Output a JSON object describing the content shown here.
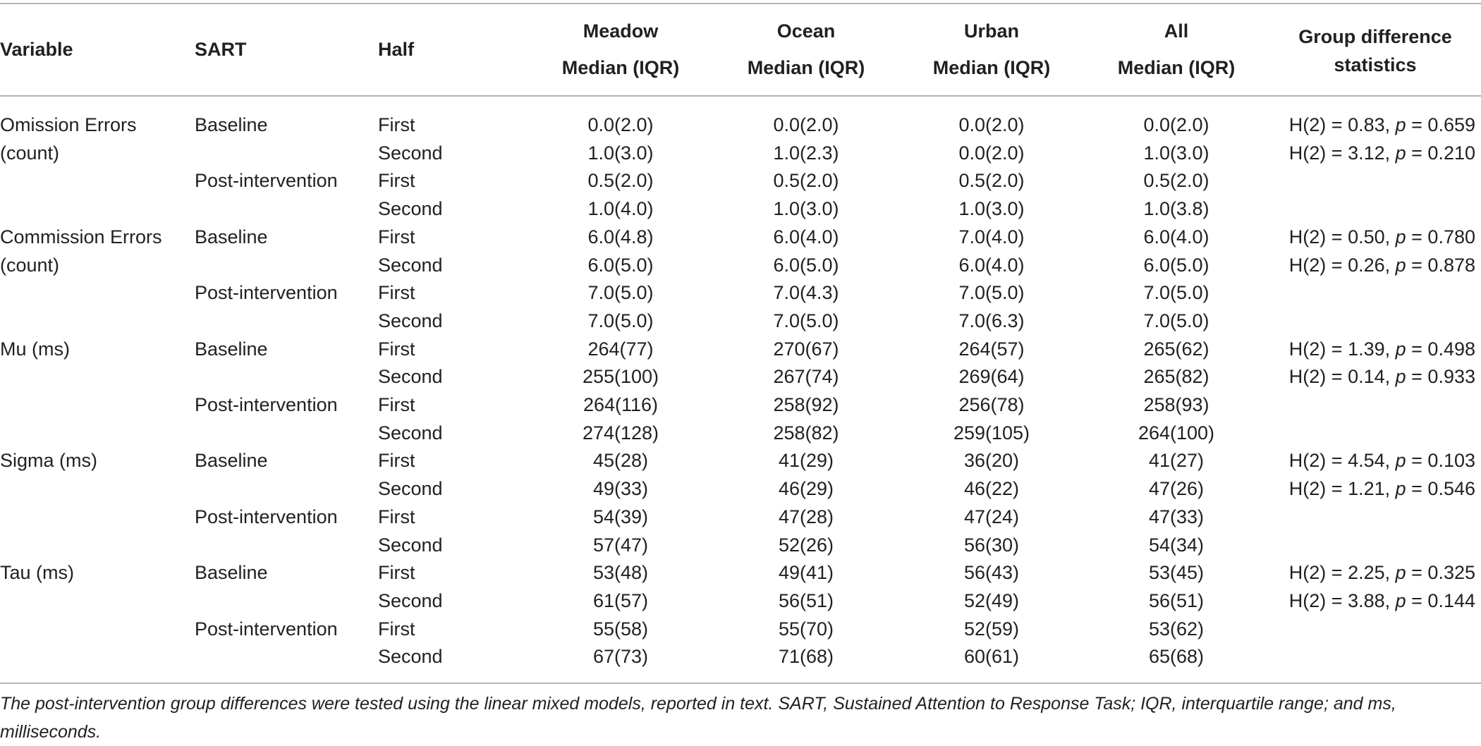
{
  "header": {
    "variable": "Variable",
    "sart": "SART",
    "half": "Half",
    "groups": [
      {
        "name": "Meadow",
        "sub": "Median (IQR)"
      },
      {
        "name": "Ocean",
        "sub": "Median (IQR)"
      },
      {
        "name": "Urban",
        "sub": "Median (IQR)"
      },
      {
        "name": "All",
        "sub": "Median (IQR)"
      }
    ],
    "stats_line1": "Group difference",
    "stats_line2": "statistics"
  },
  "rows": [
    {
      "variable": "Omission Errors",
      "sart": "Baseline",
      "half": "First",
      "meadow": "0.0(2.0)",
      "ocean": "0.0(2.0)",
      "urban": "0.0(2.0)",
      "all": "0.0(2.0)",
      "stat_h": "H(2) = 0.83, ",
      "stat_p": "p",
      "stat_pv": " = 0.659"
    },
    {
      "variable": "(count)",
      "sart": "",
      "half": "Second",
      "meadow": "1.0(3.0)",
      "ocean": "1.0(2.3)",
      "urban": "0.0(2.0)",
      "all": "1.0(3.0)",
      "stat_h": "H(2) = 3.12, ",
      "stat_p": "p",
      "stat_pv": " = 0.210"
    },
    {
      "variable": "",
      "sart": "Post-intervention",
      "half": "First",
      "meadow": "0.5(2.0)",
      "ocean": "0.5(2.0)",
      "urban": "0.5(2.0)",
      "all": "0.5(2.0)",
      "stat_h": "",
      "stat_p": "",
      "stat_pv": ""
    },
    {
      "variable": "",
      "sart": "",
      "half": "Second",
      "meadow": "1.0(4.0)",
      "ocean": "1.0(3.0)",
      "urban": "1.0(3.0)",
      "all": "1.0(3.8)",
      "stat_h": "",
      "stat_p": "",
      "stat_pv": ""
    },
    {
      "variable": "Commission Errors",
      "sart": "Baseline",
      "half": "First",
      "meadow": "6.0(4.8)",
      "ocean": "6.0(4.0)",
      "urban": "7.0(4.0)",
      "all": "6.0(4.0)",
      "stat_h": "H(2) = 0.50, ",
      "stat_p": "p",
      "stat_pv": " = 0.780"
    },
    {
      "variable": "(count)",
      "sart": "",
      "half": "Second",
      "meadow": "6.0(5.0)",
      "ocean": "6.0(5.0)",
      "urban": "6.0(4.0)",
      "all": "6.0(5.0)",
      "stat_h": "H(2) = 0.26, ",
      "stat_p": "p",
      "stat_pv": " = 0.878"
    },
    {
      "variable": "",
      "sart": "Post-intervention",
      "half": "First",
      "meadow": "7.0(5.0)",
      "ocean": "7.0(4.3)",
      "urban": "7.0(5.0)",
      "all": "7.0(5.0)",
      "stat_h": "",
      "stat_p": "",
      "stat_pv": ""
    },
    {
      "variable": "",
      "sart": "",
      "half": "Second",
      "meadow": "7.0(5.0)",
      "ocean": "7.0(5.0)",
      "urban": "7.0(6.3)",
      "all": "7.0(5.0)",
      "stat_h": "",
      "stat_p": "",
      "stat_pv": ""
    },
    {
      "variable": "Mu (ms)",
      "sart": "Baseline",
      "half": "First",
      "meadow": "264(77)",
      "ocean": "270(67)",
      "urban": "264(57)",
      "all": "265(62)",
      "stat_h": "H(2) = 1.39, ",
      "stat_p": "p",
      "stat_pv": " = 0.498"
    },
    {
      "variable": "",
      "sart": "",
      "half": "Second",
      "meadow": "255(100)",
      "ocean": "267(74)",
      "urban": "269(64)",
      "all": "265(82)",
      "stat_h": "H(2) = 0.14, ",
      "stat_p": "p",
      "stat_pv": " = 0.933"
    },
    {
      "variable": "",
      "sart": "Post-intervention",
      "half": "First",
      "meadow": "264(116)",
      "ocean": "258(92)",
      "urban": "256(78)",
      "all": "258(93)",
      "stat_h": "",
      "stat_p": "",
      "stat_pv": ""
    },
    {
      "variable": "",
      "sart": "",
      "half": "Second",
      "meadow": "274(128)",
      "ocean": "258(82)",
      "urban": "259(105)",
      "all": "264(100)",
      "stat_h": "",
      "stat_p": "",
      "stat_pv": ""
    },
    {
      "variable": "Sigma (ms)",
      "sart": "Baseline",
      "half": "First",
      "meadow": "45(28)",
      "ocean": "41(29)",
      "urban": "36(20)",
      "all": "41(27)",
      "stat_h": "H(2) = 4.54, ",
      "stat_p": "p",
      "stat_pv": " = 0.103"
    },
    {
      "variable": "",
      "sart": "",
      "half": "Second",
      "meadow": "49(33)",
      "ocean": "46(29)",
      "urban": "46(22)",
      "all": "47(26)",
      "stat_h": "H(2) = 1.21, ",
      "stat_p": "p",
      "stat_pv": " = 0.546"
    },
    {
      "variable": "",
      "sart": "Post-intervention",
      "half": "First",
      "meadow": "54(39)",
      "ocean": "47(28)",
      "urban": "47(24)",
      "all": "47(33)",
      "stat_h": "",
      "stat_p": "",
      "stat_pv": ""
    },
    {
      "variable": "",
      "sart": "",
      "half": "Second",
      "meadow": "57(47)",
      "ocean": "52(26)",
      "urban": "56(30)",
      "all": "54(34)",
      "stat_h": "",
      "stat_p": "",
      "stat_pv": ""
    },
    {
      "variable": "Tau (ms)",
      "sart": "Baseline",
      "half": "First",
      "meadow": "53(48)",
      "ocean": "49(41)",
      "urban": "56(43)",
      "all": "53(45)",
      "stat_h": "H(2) = 2.25, ",
      "stat_p": "p",
      "stat_pv": " = 0.325"
    },
    {
      "variable": "",
      "sart": "",
      "half": "Second",
      "meadow": "61(57)",
      "ocean": "56(51)",
      "urban": "52(49)",
      "all": "56(51)",
      "stat_h": "H(2) = 3.88, ",
      "stat_p": "p",
      "stat_pv": " = 0.144"
    },
    {
      "variable": "",
      "sart": "Post-intervention",
      "half": "First",
      "meadow": "55(58)",
      "ocean": "55(70)",
      "urban": "52(59)",
      "all": "53(62)",
      "stat_h": "",
      "stat_p": "",
      "stat_pv": ""
    },
    {
      "variable": "",
      "sart": "",
      "half": "Second",
      "meadow": "67(73)",
      "ocean": "71(68)",
      "urban": "60(61)",
      "all": "65(68)",
      "stat_h": "",
      "stat_p": "",
      "stat_pv": ""
    }
  ],
  "footnote": "The post-intervention group differences were tested using the linear mixed models, reported in text. SART, Sustained Attention to Response Task; IQR, interquartile range; and ms, milliseconds."
}
